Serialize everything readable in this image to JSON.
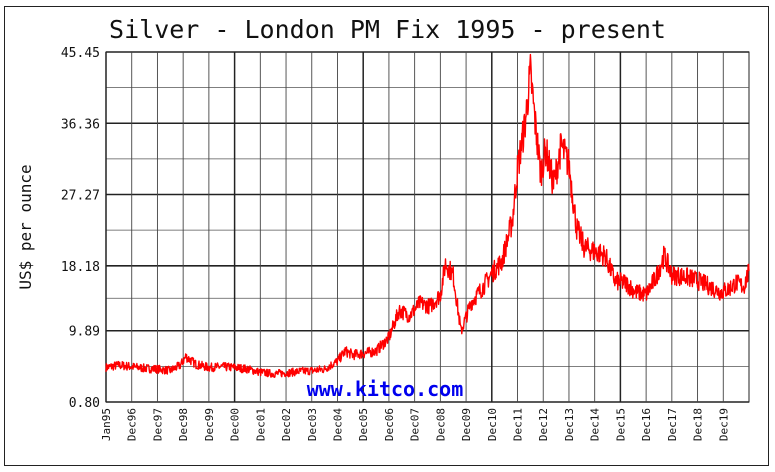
{
  "chart_data": {
    "type": "line",
    "title": "Silver - London PM Fix 1995 - present",
    "ylabel": "US$ per ounce",
    "xlabel": "",
    "ylim": [
      0.8,
      45.45
    ],
    "yticks": [
      "0.80",
      "9.89",
      "18.18",
      "27.27",
      "36.36",
      "45.45"
    ],
    "xlim": [
      1995.0,
      2020.0
    ],
    "xticks": [
      "Jan95",
      "Dec96",
      "Dec97",
      "Dec98",
      "Dec99",
      "Dec00",
      "Dec01",
      "Dec02",
      "Dec03",
      "Dec04",
      "Dec05",
      "Dec06",
      "Dec07",
      "Dec08",
      "Dec09",
      "Dec10",
      "Dec11",
      "Dec12",
      "Dec13",
      "Dec14",
      "Dec15",
      "Dec16",
      "Dec17",
      "Dec18",
      "Dec19"
    ],
    "grid": true,
    "line_color": "#ff0000",
    "watermark": "www.kitco.com",
    "series": [
      {
        "x": [
          1995.0,
          1995.5,
          1996.0,
          1996.5,
          1997.0,
          1997.5,
          1997.9,
          1998.1,
          1998.5,
          1999.0,
          1999.5,
          2000.0,
          2000.5,
          2001.0,
          2001.5,
          2002.0,
          2002.5,
          2003.0,
          2003.5,
          2004.0,
          2004.3,
          2004.6,
          2005.0,
          2005.5,
          2006.0,
          2006.4,
          2006.8,
          2007.2,
          2007.6,
          2008.0,
          2008.2,
          2008.5,
          2008.8,
          2009.2,
          2009.6,
          2010.0,
          2010.4,
          2010.8,
          2011.0,
          2011.3,
          2011.5,
          2011.7,
          2011.9,
          2012.1,
          2012.4,
          2012.7,
          2013.0,
          2013.3,
          2013.6,
          2014.0,
          2014.4,
          2014.8,
          2015.2,
          2015.6,
          2016.0,
          2016.4,
          2016.7,
          2017.0,
          2017.5,
          2018.0,
          2018.5,
          2018.9,
          2019.2,
          2019.5,
          2019.8,
          2020.0
        ],
        "y": [
          5.2,
          5.5,
          5.3,
          5.1,
          5.0,
          4.8,
          5.5,
          6.6,
          5.6,
          5.2,
          5.3,
          5.2,
          5.0,
          4.6,
          4.4,
          4.5,
          4.7,
          4.8,
          5.0,
          6.0,
          7.3,
          6.8,
          7.0,
          7.3,
          9.0,
          12.5,
          11.8,
          13.4,
          13.0,
          14.5,
          18.5,
          17.0,
          9.8,
          13.5,
          15.2,
          17.2,
          18.8,
          24.0,
          30.5,
          36.5,
          42.8,
          36.0,
          30.0,
          33.0,
          28.5,
          33.5,
          31.0,
          23.0,
          20.5,
          20.0,
          19.5,
          16.2,
          16.0,
          14.8,
          14.5,
          16.8,
          19.5,
          17.0,
          16.8,
          16.3,
          15.5,
          14.8,
          15.2,
          16.0,
          15.5,
          17.5
        ]
      }
    ]
  }
}
